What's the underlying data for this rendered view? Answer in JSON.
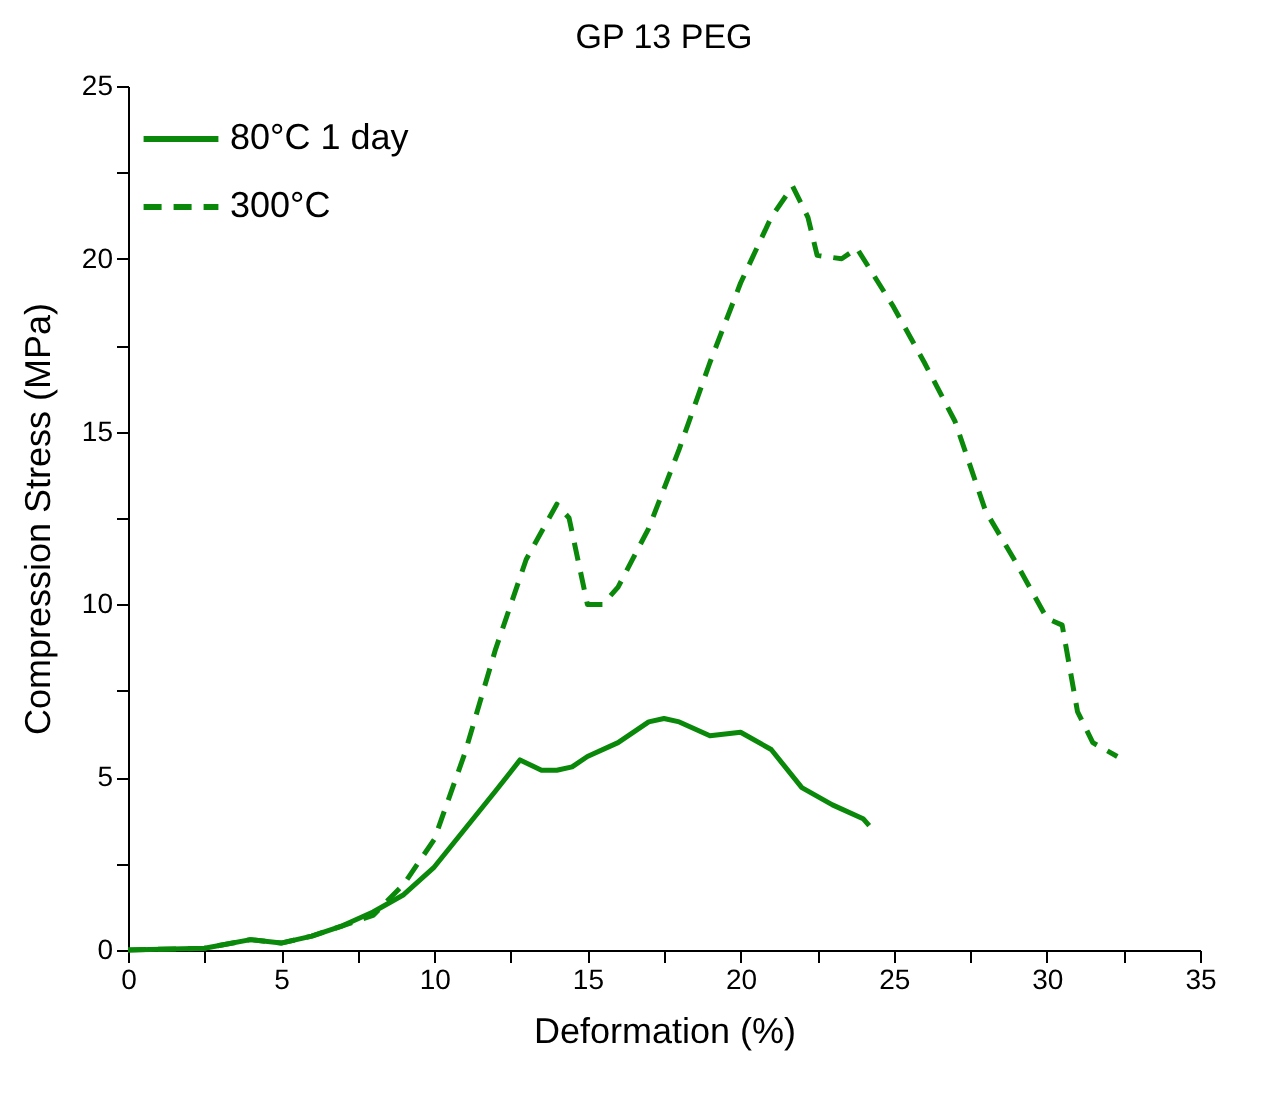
{
  "chart_data": {
    "type": "line",
    "title": "GP 13 PEG",
    "xlabel": "Deformation (%)",
    "ylabel": "Compression Stress (MPa)",
    "xlim": [
      0,
      35
    ],
    "ylim": [
      0,
      25
    ],
    "xticks": [
      0,
      {
        "value": 2.5,
        "label": null
      },
      5,
      {
        "value": 7.5,
        "label": null
      },
      10,
      {
        "value": 12.5,
        "label": null
      },
      15,
      {
        "value": 17.5,
        "label": null
      },
      20,
      {
        "value": 22.5,
        "label": null
      },
      25,
      {
        "value": 27.5,
        "label": null
      },
      30,
      {
        "value": 32.5,
        "label": null
      },
      35
    ],
    "yticks": [
      0,
      {
        "value": 2.5,
        "label": null
      },
      5,
      {
        "value": 7.5,
        "label": null
      },
      10,
      {
        "value": 12.5,
        "label": null
      },
      15,
      {
        "value": 17.5,
        "label": null
      },
      20,
      {
        "value": 22.5,
        "label": null
      },
      25
    ],
    "grid": false,
    "legend": "top left",
    "marker": "none",
    "series": [
      {
        "name": "80°C 1 day",
        "color": "#0a880a",
        "line_style": "solid",
        "x": [
          0,
          2.5,
          4,
          5,
          6,
          7,
          8,
          9,
          10,
          11,
          12,
          12.8,
          13.5,
          14,
          14.5,
          15,
          16,
          17,
          17.5,
          18,
          19,
          20,
          21,
          22,
          23,
          24,
          24.2
        ],
        "values": [
          0,
          0.05,
          0.3,
          0.2,
          0.4,
          0.7,
          1.1,
          1.6,
          2.4,
          3.5,
          4.6,
          5.5,
          5.2,
          5.2,
          5.3,
          5.6,
          6.0,
          6.6,
          6.7,
          6.6,
          6.2,
          6.3,
          5.8,
          4.7,
          4.2,
          3.8,
          3.6
        ]
      },
      {
        "name": "300°C",
        "color": "#0a880a",
        "line_style": "dashed",
        "x": [
          0,
          2.5,
          4,
          5,
          6,
          7,
          8,
          9,
          10,
          11,
          12,
          13,
          14,
          14.4,
          15,
          15.5,
          16,
          17,
          18,
          19,
          20,
          21,
          21.7,
          22.2,
          22.5,
          23.3,
          23.8,
          25,
          26,
          27,
          28,
          29,
          30,
          30.5,
          31,
          31.5,
          32.3
        ],
        "values": [
          0,
          0.05,
          0.3,
          0.2,
          0.4,
          0.7,
          1.0,
          1.9,
          3.2,
          5.7,
          8.7,
          11.3,
          12.9,
          12.5,
          10.0,
          10.0,
          10.5,
          12.2,
          14.5,
          17.0,
          19.3,
          21.2,
          22.1,
          21.2,
          20.1,
          20.0,
          20.3,
          18.6,
          17.0,
          15.3,
          12.7,
          11.2,
          9.6,
          9.4,
          6.9,
          6.0,
          5.6
        ]
      }
    ]
  }
}
